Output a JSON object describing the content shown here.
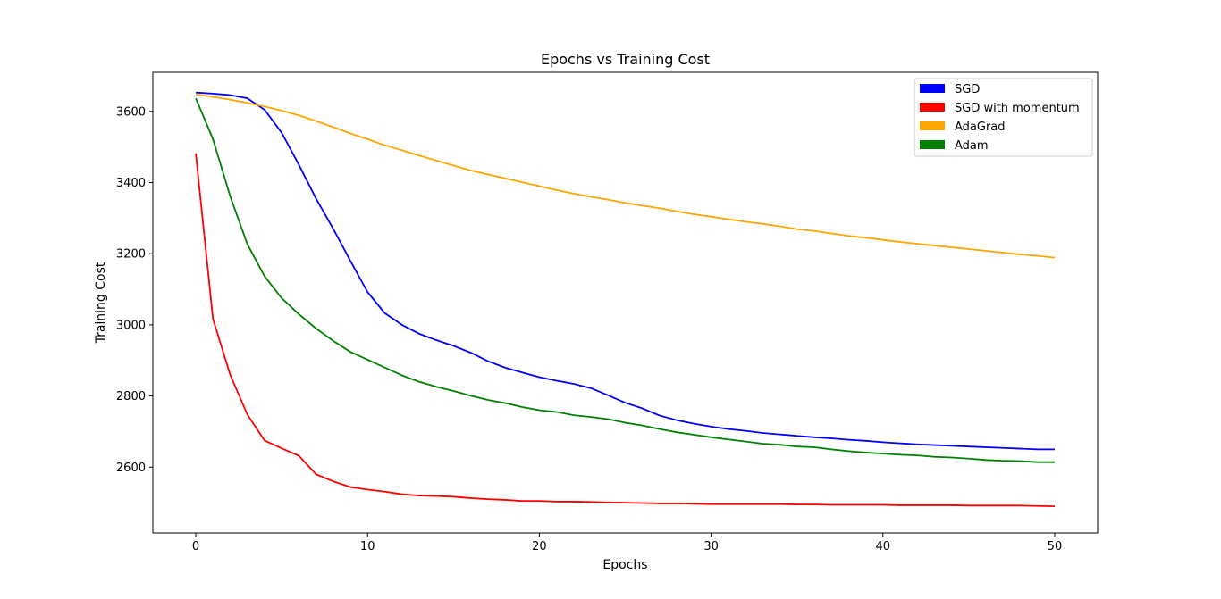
{
  "chart_data": {
    "type": "line",
    "title": "Epochs vs Training Cost",
    "xlabel": "Epochs",
    "ylabel": "Training Cost",
    "xlim": [
      -2.5,
      52.5
    ],
    "ylim": [
      2415,
      3710
    ],
    "xticks": [
      0,
      10,
      20,
      30,
      40,
      50
    ],
    "yticks": [
      2600,
      2800,
      3000,
      3200,
      3400,
      3600
    ],
    "grid": false,
    "legend_position": "top-right",
    "x": [
      0,
      1,
      2,
      3,
      4,
      5,
      6,
      7,
      8,
      9,
      10,
      11,
      12,
      13,
      14,
      15,
      16,
      17,
      18,
      19,
      20,
      21,
      22,
      23,
      24,
      25,
      26,
      27,
      28,
      29,
      30,
      31,
      32,
      33,
      34,
      35,
      36,
      37,
      38,
      39,
      40,
      41,
      42,
      43,
      44,
      45,
      46,
      47,
      48,
      49,
      50
    ],
    "series": [
      {
        "name": "SGD",
        "color": "#0000ff",
        "values": [
          3653,
          3650,
          3646,
          3637,
          3605,
          3540,
          3450,
          3355,
          3270,
          3180,
          3092,
          3033,
          3000,
          2975,
          2957,
          2941,
          2922,
          2898,
          2880,
          2866,
          2853,
          2843,
          2834,
          2822,
          2802,
          2781,
          2765,
          2745,
          2732,
          2722,
          2714,
          2707,
          2702,
          2696,
          2692,
          2688,
          2684,
          2681,
          2677,
          2674,
          2670,
          2667,
          2664,
          2662,
          2660,
          2658,
          2656,
          2654,
          2652,
          2650,
          2650
        ]
      },
      {
        "name": "SGD with momentum",
        "color": "#ff0000",
        "values": [
          3482,
          3017,
          2860,
          2748,
          2675,
          2653,
          2632,
          2580,
          2560,
          2544,
          2537,
          2531,
          2524,
          2520,
          2519,
          2517,
          2513,
          2510,
          2508,
          2505,
          2505,
          2503,
          2503,
          2502,
          2501,
          2500,
          2499,
          2498,
          2498,
          2497,
          2496,
          2496,
          2496,
          2496,
          2496,
          2495,
          2495,
          2494,
          2494,
          2494,
          2494,
          2493,
          2493,
          2493,
          2493,
          2492,
          2492,
          2492,
          2492,
          2491,
          2490
        ]
      },
      {
        "name": "AdaGrad",
        "color": "#ffa500",
        "values": [
          3648,
          3641,
          3633,
          3624,
          3614,
          3602,
          3589,
          3573,
          3556,
          3538,
          3522,
          3505,
          3491,
          3476,
          3462,
          3448,
          3434,
          3423,
          3412,
          3401,
          3390,
          3379,
          3369,
          3360,
          3352,
          3343,
          3335,
          3328,
          3319,
          3311,
          3304,
          3297,
          3290,
          3284,
          3277,
          3269,
          3264,
          3257,
          3250,
          3245,
          3239,
          3233,
          3228,
          3223,
          3218,
          3213,
          3208,
          3203,
          3198,
          3194,
          3189
        ]
      },
      {
        "name": "Adam",
        "color": "#008000",
        "values": [
          3637,
          3522,
          3362,
          3227,
          3137,
          3075,
          3030,
          2990,
          2955,
          2924,
          2902,
          2880,
          2858,
          2840,
          2826,
          2814,
          2801,
          2789,
          2780,
          2769,
          2760,
          2755,
          2746,
          2741,
          2735,
          2725,
          2717,
          2707,
          2698,
          2691,
          2684,
          2678,
          2672,
          2666,
          2663,
          2658,
          2656,
          2650,
          2645,
          2641,
          2638,
          2635,
          2633,
          2629,
          2627,
          2624,
          2620,
          2618,
          2617,
          2614,
          2614
        ]
      }
    ]
  }
}
